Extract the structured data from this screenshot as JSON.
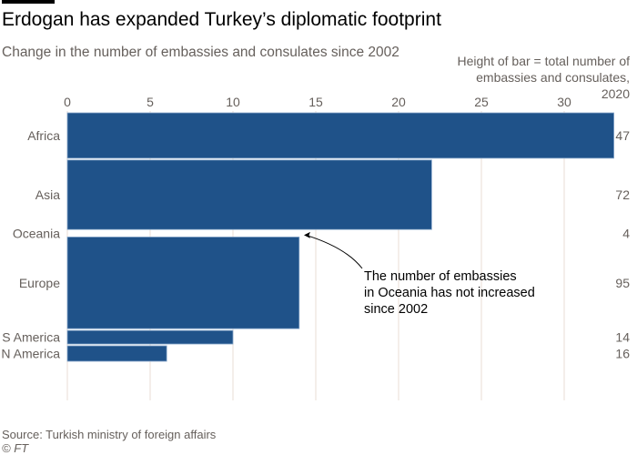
{
  "header": {
    "title": "Erdogan has expanded Turkey’s diplomatic footprint",
    "subtitle": "Change in the number of embassies and consulates since 2002"
  },
  "footer": {
    "source": "Source: Turkish ministry of foreign affairs",
    "copyright": "© FT"
  },
  "chart_data": {
    "type": "bar",
    "orientation": "horizontal",
    "variable_width": true,
    "title": "Erdogan has expanded Turkey’s diplomatic footprint",
    "subtitle": "Change in the number of embassies and consulates since 2002",
    "xlabel": "",
    "ylabel": "",
    "xlim": [
      0,
      33
    ],
    "xticks": [
      0,
      5,
      10,
      15,
      20,
      25,
      30
    ],
    "x_axis_position": "top",
    "grid": true,
    "categories": [
      "Africa",
      "Asia",
      "Oceania",
      "Europe",
      "S America",
      "N America"
    ],
    "values": [
      33,
      22,
      0,
      14,
      10,
      6
    ],
    "bar_height_meaning": "Height of bar = total number of embassies and consulates, 2020",
    "bar_height_lines": [
      "Height of bar = total number of",
      "embassies and consulates,",
      "2020"
    ],
    "totals_2020": [
      47,
      72,
      4,
      95,
      14,
      16
    ],
    "bar_color": "#1f5289",
    "annotation": {
      "target": "Oceania",
      "lines": [
        "The number of embassies",
        "in Oceania has not increased",
        "since 2002"
      ]
    }
  }
}
